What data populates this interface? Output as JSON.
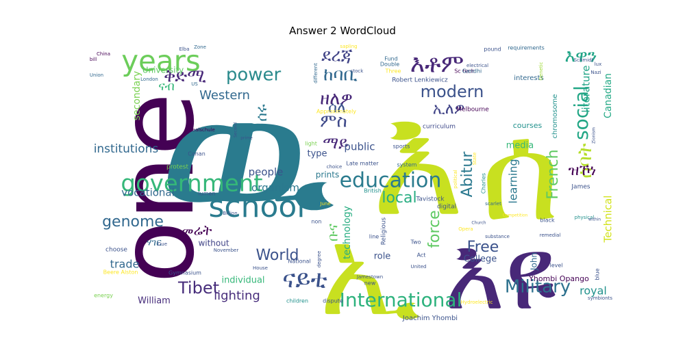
{
  "chart_data": {
    "type": "wordcloud",
    "title": "Answer 2 WordCloud",
    "words": [
      {
        "text": "one",
        "color": "#440154"
      },
      {
        "text": "ዉ",
        "color": "#2a7b8e"
      },
      {
        "text": "እ",
        "color": "#c8e020"
      },
      {
        "text": "ሰ",
        "color": "#c8e020"
      },
      {
        "text": "ኢ",
        "color": "#c8e020"
      },
      {
        "text": "እዩ",
        "color": "#482878"
      },
      {
        "text": "years",
        "color": "#6ccd5a"
      },
      {
        "text": "school",
        "color": "#2a7b8e"
      },
      {
        "text": "government",
        "color": "#35b779"
      },
      {
        "text": "education",
        "color": "#2a7b8e"
      },
      {
        "text": "International",
        "color": "#2db27d"
      },
      {
        "text": "Military",
        "color": "#2d718e"
      },
      {
        "text": "ናይቲ",
        "color": "#3b528b"
      },
      {
        "text": "power",
        "color": "#2a8a8c"
      },
      {
        "text": "ቅድሚ",
        "color": "#482878"
      },
      {
        "text": "እቶም",
        "color": "#482878"
      },
      {
        "text": "ዘለዎ",
        "color": "#482878"
      },
      {
        "text": "modern",
        "color": "#3b528b"
      },
      {
        "text": "social",
        "color": "#21a685"
      },
      {
        "text": "French",
        "color": "#5ec962"
      },
      {
        "text": "Abitur",
        "color": "#2a788e"
      },
      {
        "text": "Tibet",
        "color": "#472d7b"
      },
      {
        "text": "World",
        "color": "#3b528b"
      },
      {
        "text": "Free",
        "color": "#3b528b"
      },
      {
        "text": "genome",
        "color": "#31688e"
      },
      {
        "text": "institutions",
        "color": "#31688e"
      },
      {
        "text": "local",
        "color": "#27ad81"
      },
      {
        "text": "ምስ",
        "color": "#3e4989"
      },
      {
        "text": "ማይ",
        "color": "#482878"
      },
      {
        "text": "ሰባት",
        "color": "#b5de2b"
      },
      {
        "text": "እዋን",
        "color": "#20a486"
      },
      {
        "text": "ደረጃ",
        "color": "#414487"
      },
      {
        "text": "ከባቢ",
        "color": "#31688e"
      },
      {
        "text": "ዝኾነ",
        "color": "#440154"
      },
      {
        "text": "force",
        "color": "#5ec962"
      },
      {
        "text": "Western",
        "color": "#31688e"
      },
      {
        "text": "lighting",
        "color": "#472d7b"
      },
      {
        "text": "trade",
        "color": "#31688e"
      },
      {
        "text": "learning",
        "color": "#2a788e"
      },
      {
        "text": "literature",
        "color": "#20a486"
      },
      {
        "text": "Technical",
        "color": "#d2e21b"
      },
      {
        "text": "Canadian",
        "color": "#22a884"
      },
      {
        "text": "royal",
        "color": "#21918c"
      },
      {
        "text": "መሬት",
        "color": "#440154"
      },
      {
        "text": "ሰለ",
        "color": "#3b528b"
      },
      {
        "text": "ኢለዎ",
        "color": "#414487"
      },
      {
        "text": "ናብ",
        "color": "#35b779"
      },
      {
        "text": "ሰሩ",
        "color": "#2a788e"
      },
      {
        "text": "ቡና",
        "color": "#5ec962"
      },
      {
        "text": "ሃገር",
        "color": "#31688e"
      },
      {
        "text": "secondary",
        "color": "#7ad151"
      },
      {
        "text": "University",
        "color": "#5ec962"
      },
      {
        "text": "vocational",
        "color": "#31688e"
      },
      {
        "text": "public",
        "color": "#3b528b"
      },
      {
        "text": "people",
        "color": "#3b528b"
      },
      {
        "text": "organism",
        "color": "#2a788e"
      },
      {
        "text": "media",
        "color": "#35b779"
      },
      {
        "text": "technology",
        "color": "#27ad81"
      },
      {
        "text": "College",
        "color": "#3b528b"
      },
      {
        "text": "William",
        "color": "#472d7b"
      },
      {
        "text": "individual",
        "color": "#35b779"
      },
      {
        "text": "role",
        "color": "#3b528b"
      },
      {
        "text": "type",
        "color": "#3b528b"
      },
      {
        "text": "prints",
        "color": "#2a788e"
      },
      {
        "text": "without",
        "color": "#414487"
      },
      {
        "text": "John",
        "color": "#31688e"
      },
      {
        "text": "Yhombi Opango",
        "color": "#440154"
      },
      {
        "text": "Joachim Yhombi",
        "color": "#3b528b"
      },
      {
        "text": "courses",
        "color": "#21918c"
      },
      {
        "text": "chromosome",
        "color": "#21918c"
      },
      {
        "text": "interests",
        "color": "#31688e"
      },
      {
        "text": "curriculum",
        "color": "#3e4989"
      },
      {
        "text": "Melbourne",
        "color": "#440154"
      },
      {
        "text": "Robert Lenkiewicz",
        "color": "#3b528b"
      },
      {
        "text": "Sc tech",
        "color": "#440154"
      },
      {
        "text": "Gandhi",
        "color": "#31688e"
      },
      {
        "text": "electrical",
        "color": "#3b528b"
      },
      {
        "text": "Fund",
        "color": "#31688e"
      },
      {
        "text": "pound",
        "color": "#3b528b"
      },
      {
        "text": "requirements",
        "color": "#31688e"
      },
      {
        "text": "Approximately",
        "color": "#fde725"
      },
      {
        "text": "Three",
        "color": "#fde725"
      },
      {
        "text": "Double",
        "color": "#31688e"
      },
      {
        "text": "Genetic",
        "color": "#a0da39"
      },
      {
        "text": "lux",
        "color": "#3b528b"
      },
      {
        "text": "London",
        "color": "#31688e"
      },
      {
        "text": "Union",
        "color": "#31688e"
      },
      {
        "text": "bill",
        "color": "#440154"
      },
      {
        "text": "China",
        "color": "#440154"
      },
      {
        "text": "sapling",
        "color": "#fde725"
      },
      {
        "text": "different",
        "color": "#31688e"
      },
      {
        "text": "Zone",
        "color": "#31688e"
      },
      {
        "text": "US",
        "color": "#31688e"
      },
      {
        "text": "Realschule",
        "color": "#440154"
      },
      {
        "text": "Conan",
        "color": "#3b528b"
      },
      {
        "text": "Second",
        "color": "#3b528b"
      },
      {
        "text": "prime",
        "color": "#3b528b"
      },
      {
        "text": "light",
        "color": "#7ad151"
      },
      {
        "text": "choice",
        "color": "#3b528b"
      },
      {
        "text": "Late matter",
        "color": "#3b528b"
      },
      {
        "text": "sports",
        "color": "#3b528b"
      },
      {
        "text": "system",
        "color": "#31688e"
      },
      {
        "text": "British",
        "color": "#21918c"
      },
      {
        "text": "Tavistock",
        "color": "#3b528b"
      },
      {
        "text": "digital",
        "color": "#3b528b"
      },
      {
        "text": "Charles",
        "color": "#21918c"
      },
      {
        "text": "James",
        "color": "#3b528b"
      },
      {
        "text": "scarlet",
        "color": "#31688e"
      },
      {
        "text": "physical",
        "color": "#21918c"
      },
      {
        "text": "political",
        "color": "#fde725"
      },
      {
        "text": "State",
        "color": "#fde725"
      },
      {
        "text": "protest",
        "color": "#7ad151"
      },
      {
        "text": "lumen",
        "color": "#3b528b"
      },
      {
        "text": "Billion",
        "color": "#3b528b"
      },
      {
        "text": "non",
        "color": "#3b528b"
      },
      {
        "text": "line",
        "color": "#3b528b"
      },
      {
        "text": "Religious",
        "color": "#3b528b"
      },
      {
        "text": "Two",
        "color": "#3b528b"
      },
      {
        "text": "Act",
        "color": "#3b528b"
      },
      {
        "text": "United",
        "color": "#3b528b"
      },
      {
        "text": "June",
        "color": "#fde725"
      },
      {
        "text": "choose",
        "color": "#3b528b"
      },
      {
        "text": "Due",
        "color": "#3b528b"
      },
      {
        "text": "November",
        "color": "#3b528b"
      },
      {
        "text": "National",
        "color": "#3b528b"
      },
      {
        "text": "degree",
        "color": "#3b528b"
      },
      {
        "text": "Beere Alston",
        "color": "#fde725"
      },
      {
        "text": "Gymnasium",
        "color": "#3b528b"
      },
      {
        "text": "energy",
        "color": "#7ad151"
      },
      {
        "text": "children",
        "color": "#21918c"
      },
      {
        "text": "dispute",
        "color": "#3b528b"
      },
      {
        "text": "House",
        "color": "#3b528b"
      },
      {
        "text": "Jamestown",
        "color": "#3b528b"
      },
      {
        "text": "new",
        "color": "#3b528b"
      },
      {
        "text": "remedial",
        "color": "#3b528b"
      },
      {
        "text": "black",
        "color": "#3b528b"
      },
      {
        "text": "level",
        "color": "#3b528b"
      },
      {
        "text": "blue",
        "color": "#3b528b"
      },
      {
        "text": "symbionts",
        "color": "#3b528b"
      },
      {
        "text": "Hydroelectric",
        "color": "#fde725"
      },
      {
        "text": "substance",
        "color": "#3b528b"
      },
      {
        "text": "within",
        "color": "#3b528b"
      },
      {
        "text": "Competition",
        "color": "#fde725"
      },
      {
        "text": "Church",
        "color": "#3b528b"
      },
      {
        "text": "Opera",
        "color": "#fde725"
      },
      {
        "text": "Zionism",
        "color": "#3b528b"
      },
      {
        "text": "stock",
        "color": "#3b528b"
      },
      {
        "text": "Schmidt",
        "color": "#3b528b"
      },
      {
        "text": "Elba",
        "color": "#3b528b"
      },
      {
        "text": "Nazi",
        "color": "#3b528b"
      }
    ]
  }
}
